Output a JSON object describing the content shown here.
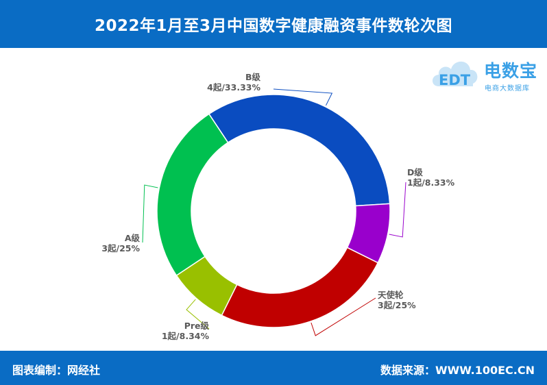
{
  "title": "2022年1月至3月中国数字健康融资事件数轮次图",
  "footer": {
    "left": "图表编制：网经社",
    "right": "数据来源：WWW.100EC.CN"
  },
  "logo": {
    "brand": "电数宝",
    "subtitle": "电商大数据库",
    "mark_text": "EDT"
  },
  "chart_data": {
    "type": "pie",
    "donut": true,
    "legend": "none",
    "slices": [
      {
        "name": "B级",
        "value": 4,
        "label": "4起/33.33%",
        "color": "#0a4cc0"
      },
      {
        "name": "D级",
        "value": 1,
        "label": "1起/8.33%",
        "color": "#9900cc"
      },
      {
        "name": "天使轮",
        "value": 3,
        "label": "3起/25%",
        "color": "#c00000"
      },
      {
        "name": "Pre级",
        "value": 1,
        "label": "1起/8.34%",
        "color": "#99c000"
      },
      {
        "name": "A级",
        "value": 3,
        "label": "3起/25%",
        "color": "#00c050"
      }
    ]
  }
}
